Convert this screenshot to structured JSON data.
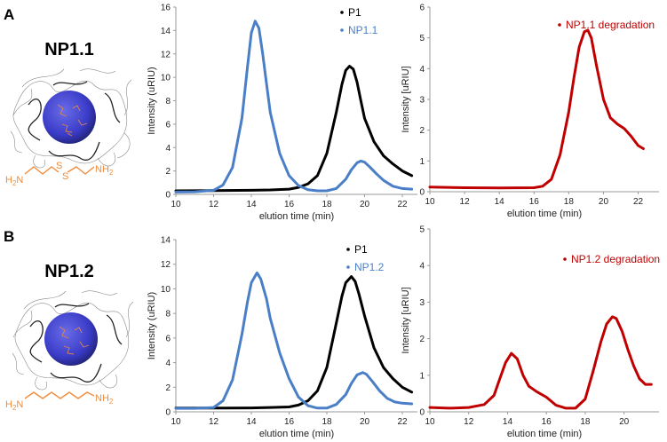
{
  "figure": {
    "panels": [
      {
        "letter": "A",
        "np_label": "NP1.1",
        "linker_atoms": {
          "left": "H2N",
          "left_h": "H",
          "left_n": "N",
          "left_sub": "2",
          "s1": "S",
          "s2": "S",
          "right_n": "NH",
          "right_sub": "2"
        }
      },
      {
        "letter": "B",
        "np_label": "NP1.2",
        "linker_atoms": {
          "left": "H2N",
          "left_h": "H",
          "left_n": "N",
          "left_sub": "2",
          "right_n": "NH",
          "right_sub": "2"
        }
      }
    ],
    "colors": {
      "p1": "#000000",
      "np": "#4a7fc8",
      "degradation": "#c00000",
      "linker": "#f08c3c",
      "nanoparticle": "#3a3cc8"
    }
  },
  "chart_data": [
    {
      "id": "A-gpc",
      "type": "line",
      "xlabel": "elution time (min)",
      "ylabel": "Intensity (uRIU)",
      "xlim": [
        10,
        22.8
      ],
      "ylim": [
        0,
        16
      ],
      "xticks": [
        10,
        12,
        14,
        16,
        18,
        20,
        22
      ],
      "yticks": [
        0,
        2,
        4,
        6,
        8,
        10,
        12,
        14,
        16
      ],
      "legend_position": "top-right",
      "series": [
        {
          "name": "P1",
          "color": "#000000",
          "x": [
            10,
            12,
            14,
            15,
            16,
            16.5,
            17,
            17.5,
            18,
            18.5,
            18.8,
            19,
            19.2,
            19.4,
            19.6,
            19.8,
            20,
            20.5,
            21,
            21.5,
            22,
            22.5
          ],
          "y": [
            0.3,
            0.32,
            0.35,
            0.38,
            0.45,
            0.6,
            0.9,
            1.6,
            3.5,
            7.0,
            9.4,
            10.6,
            10.95,
            10.7,
            9.6,
            8.0,
            6.5,
            4.5,
            3.3,
            2.6,
            2.0,
            1.6
          ]
        },
        {
          "name": "NP1.1",
          "color": "#4a7fc8",
          "x": [
            10,
            11,
            12,
            12.5,
            13,
            13.5,
            13.8,
            14,
            14.2,
            14.4,
            14.6,
            14.8,
            15,
            15.5,
            16,
            16.5,
            17,
            17.5,
            18,
            18.5,
            19,
            19.3,
            19.6,
            19.8,
            20,
            20.3,
            20.6,
            21,
            21.5,
            22,
            22.5
          ],
          "y": [
            0.2,
            0.22,
            0.35,
            0.8,
            2.3,
            6.5,
            11.0,
            13.8,
            14.8,
            14.2,
            12.0,
            9.5,
            7.0,
            3.5,
            1.6,
            0.75,
            0.4,
            0.3,
            0.3,
            0.5,
            1.3,
            2.1,
            2.7,
            2.85,
            2.75,
            2.3,
            1.8,
            1.2,
            0.7,
            0.5,
            0.45
          ]
        }
      ]
    },
    {
      "id": "A-degradation",
      "type": "line",
      "xlabel": "elution time (min)",
      "ylabel": "Intensity [uRIU]",
      "xlim": [
        10,
        23.2
      ],
      "ylim": [
        0,
        6
      ],
      "xticks": [
        10,
        12,
        14,
        16,
        18,
        20,
        22
      ],
      "yticks": [
        0,
        1,
        2,
        3,
        4,
        5,
        6
      ],
      "legend_position": "top-right",
      "series": [
        {
          "name": "NP1.1 degradation",
          "color": "#c00000",
          "x": [
            10,
            12,
            14,
            16,
            16.5,
            17,
            17.5,
            18,
            18.3,
            18.6,
            18.9,
            19.1,
            19.3,
            19.6,
            20,
            20.4,
            20.8,
            21.2,
            21.6,
            22,
            22.3
          ],
          "y": [
            0.15,
            0.13,
            0.12,
            0.13,
            0.18,
            0.4,
            1.2,
            2.6,
            3.7,
            4.7,
            5.2,
            5.25,
            5.0,
            4.1,
            3.0,
            2.4,
            2.2,
            2.05,
            1.8,
            1.5,
            1.4
          ]
        }
      ]
    },
    {
      "id": "B-gpc",
      "type": "line",
      "xlabel": "elution time (min)",
      "ylabel": "Intensity (uRIU)",
      "xlim": [
        10,
        22.8
      ],
      "ylim": [
        0,
        14
      ],
      "xticks": [
        10,
        12,
        14,
        16,
        18,
        20,
        22
      ],
      "yticks": [
        0,
        2,
        4,
        6,
        8,
        10,
        12,
        14
      ],
      "legend_position": "top-right",
      "series": [
        {
          "name": "P1",
          "color": "#000000",
          "x": [
            10,
            12,
            14,
            15,
            16,
            16.5,
            17,
            17.5,
            18,
            18.5,
            18.8,
            19,
            19.3,
            19.5,
            19.7,
            20,
            20.5,
            21,
            21.5,
            22,
            22.5
          ],
          "y": [
            0.3,
            0.3,
            0.32,
            0.35,
            0.4,
            0.55,
            0.9,
            1.7,
            3.6,
            7.2,
            9.4,
            10.5,
            11.0,
            10.6,
            9.6,
            7.8,
            5.2,
            3.6,
            2.7,
            2.0,
            1.6
          ]
        },
        {
          "name": "NP1.2",
          "color": "#4a7fc8",
          "x": [
            10,
            11,
            12,
            12.5,
            13,
            13.5,
            13.8,
            14,
            14.3,
            14.5,
            14.8,
            15,
            15.5,
            16,
            16.5,
            17,
            17.5,
            18,
            18.5,
            19,
            19.3,
            19.6,
            19.9,
            20.1,
            20.4,
            20.8,
            21.2,
            21.6,
            22,
            22.5
          ],
          "y": [
            0.28,
            0.28,
            0.35,
            0.9,
            2.6,
            6.3,
            9.0,
            10.5,
            11.3,
            10.8,
            9.2,
            7.6,
            4.8,
            2.7,
            1.2,
            0.5,
            0.3,
            0.3,
            0.6,
            1.4,
            2.3,
            3.0,
            3.2,
            3.05,
            2.5,
            1.7,
            1.1,
            0.8,
            0.7,
            0.65
          ]
        }
      ]
    },
    {
      "id": "B-degradation",
      "type": "line",
      "xlabel": "elution time (min)",
      "ylabel": "Intensity [uRIU]",
      "xlim": [
        10,
        21.8
      ],
      "ylim": [
        0,
        5
      ],
      "xticks": [
        10,
        12,
        14,
        16,
        18,
        20
      ],
      "yticks": [
        0,
        1,
        2,
        3,
        4,
        5
      ],
      "legend_position": "top-right",
      "series": [
        {
          "name": "NP1.2 degradation",
          "color": "#c00000",
          "x": [
            10,
            11,
            12,
            12.8,
            13.3,
            13.6,
            13.9,
            14.2,
            14.5,
            14.8,
            15.1,
            15.5,
            16,
            16.5,
            17,
            17.5,
            18,
            18.4,
            18.8,
            19.1,
            19.4,
            19.6,
            19.9,
            20.2,
            20.5,
            20.8,
            21.1,
            21.4
          ],
          "y": [
            0.12,
            0.1,
            0.12,
            0.2,
            0.45,
            0.9,
            1.35,
            1.6,
            1.45,
            1.0,
            0.7,
            0.55,
            0.4,
            0.18,
            0.1,
            0.1,
            0.35,
            1.1,
            1.9,
            2.4,
            2.6,
            2.55,
            2.2,
            1.7,
            1.25,
            0.9,
            0.75,
            0.75
          ]
        }
      ]
    }
  ]
}
